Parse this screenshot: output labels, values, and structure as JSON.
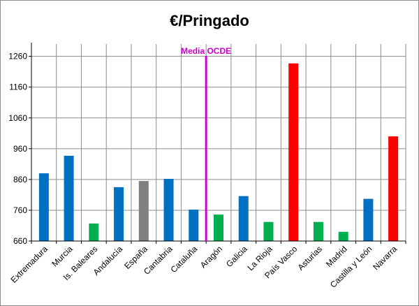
{
  "chart_data": {
    "type": "bar",
    "title": "€/Pringado",
    "categories": [
      "Extremadura",
      "Murcia",
      "Is. Baleares",
      "Andalucía",
      "España",
      "Cantabria",
      "Cataluña",
      "Aragón",
      "Galicia",
      "La Rioja",
      "País Vasco",
      "Asturias",
      "Madrid",
      "Castilla y León",
      "Navarra"
    ],
    "values": [
      880,
      937,
      717,
      835,
      855,
      862,
      762,
      746,
      806,
      722,
      1237,
      722,
      690,
      797,
      1000
    ],
    "bar_colors": [
      "#0070c0",
      "#0070c0",
      "#00b050",
      "#0070c0",
      "#808080",
      "#0070c0",
      "#0070c0",
      "#00b050",
      "#0070c0",
      "#00b050",
      "#ff0000",
      "#00b050",
      "#00b050",
      "#0070c0",
      "#ff0000"
    ],
    "yticks": [
      660,
      760,
      860,
      960,
      1060,
      1160,
      1260
    ],
    "ylim": [
      660,
      1300
    ],
    "reference_line": {
      "label": "Media OCDE",
      "after_category_index": 6,
      "color": "#cc00cc"
    },
    "grid": true
  }
}
